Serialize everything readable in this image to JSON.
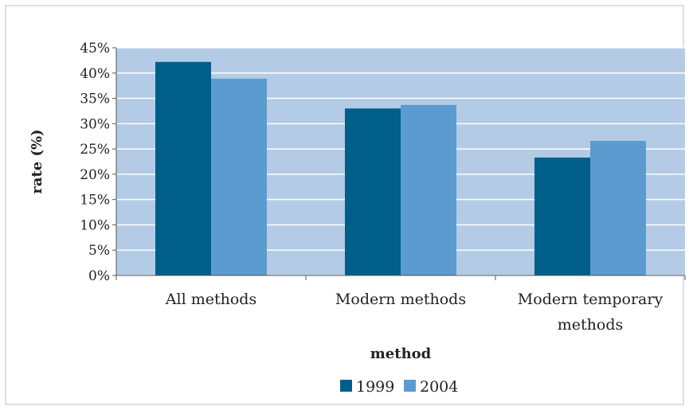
{
  "chart_data": {
    "type": "bar",
    "categories": [
      [
        "All methods"
      ],
      [
        "Modern methods"
      ],
      [
        "Modern temporary",
        "methods"
      ]
    ],
    "series": [
      {
        "name": "1999",
        "values": [
          42.2,
          33.0,
          23.3
        ],
        "color": "#005F8A"
      },
      {
        "name": "2004",
        "values": [
          38.9,
          33.7,
          26.6
        ],
        "color": "#5B9BD0"
      }
    ],
    "y_ticks": [
      "0%",
      "5%",
      "10%",
      "15%",
      "20%",
      "25%",
      "30%",
      "35%",
      "40%",
      "45%"
    ],
    "ylim": [
      0,
      45
    ],
    "xlabel": "method",
    "ylabel": "rate (%)",
    "grid": true,
    "legend_position": "bottom",
    "plot_background": "#B4CBE5",
    "grid_color": "#FFFFFF"
  }
}
